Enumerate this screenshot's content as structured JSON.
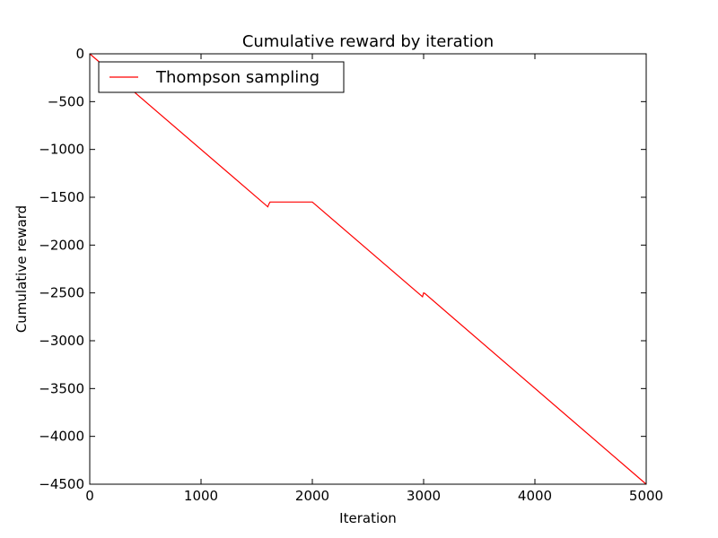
{
  "chart_data": {
    "type": "line",
    "title": "Cumulative reward by iteration",
    "xlabel": "Iteration",
    "ylabel": "Cumulative reward",
    "xlim": [
      0,
      5000
    ],
    "ylim": [
      -4500,
      0
    ],
    "xticks": [
      0,
      1000,
      2000,
      3000,
      4000,
      5000
    ],
    "yticks": [
      0,
      -500,
      -1000,
      -1500,
      -2000,
      -2500,
      -3000,
      -3500,
      -4000,
      -4500
    ],
    "grid": false,
    "legend_position": "top-left",
    "series": [
      {
        "name": "Thompson sampling",
        "color": "#ff0000",
        "x": [
          0,
          1600,
          1610,
          1620,
          2000,
          2990,
          3000,
          3010,
          5000
        ],
        "y": [
          0,
          -1600,
          -1570,
          -1550,
          -1550,
          -2540,
          -2500,
          -2505,
          -4500
        ]
      }
    ]
  }
}
